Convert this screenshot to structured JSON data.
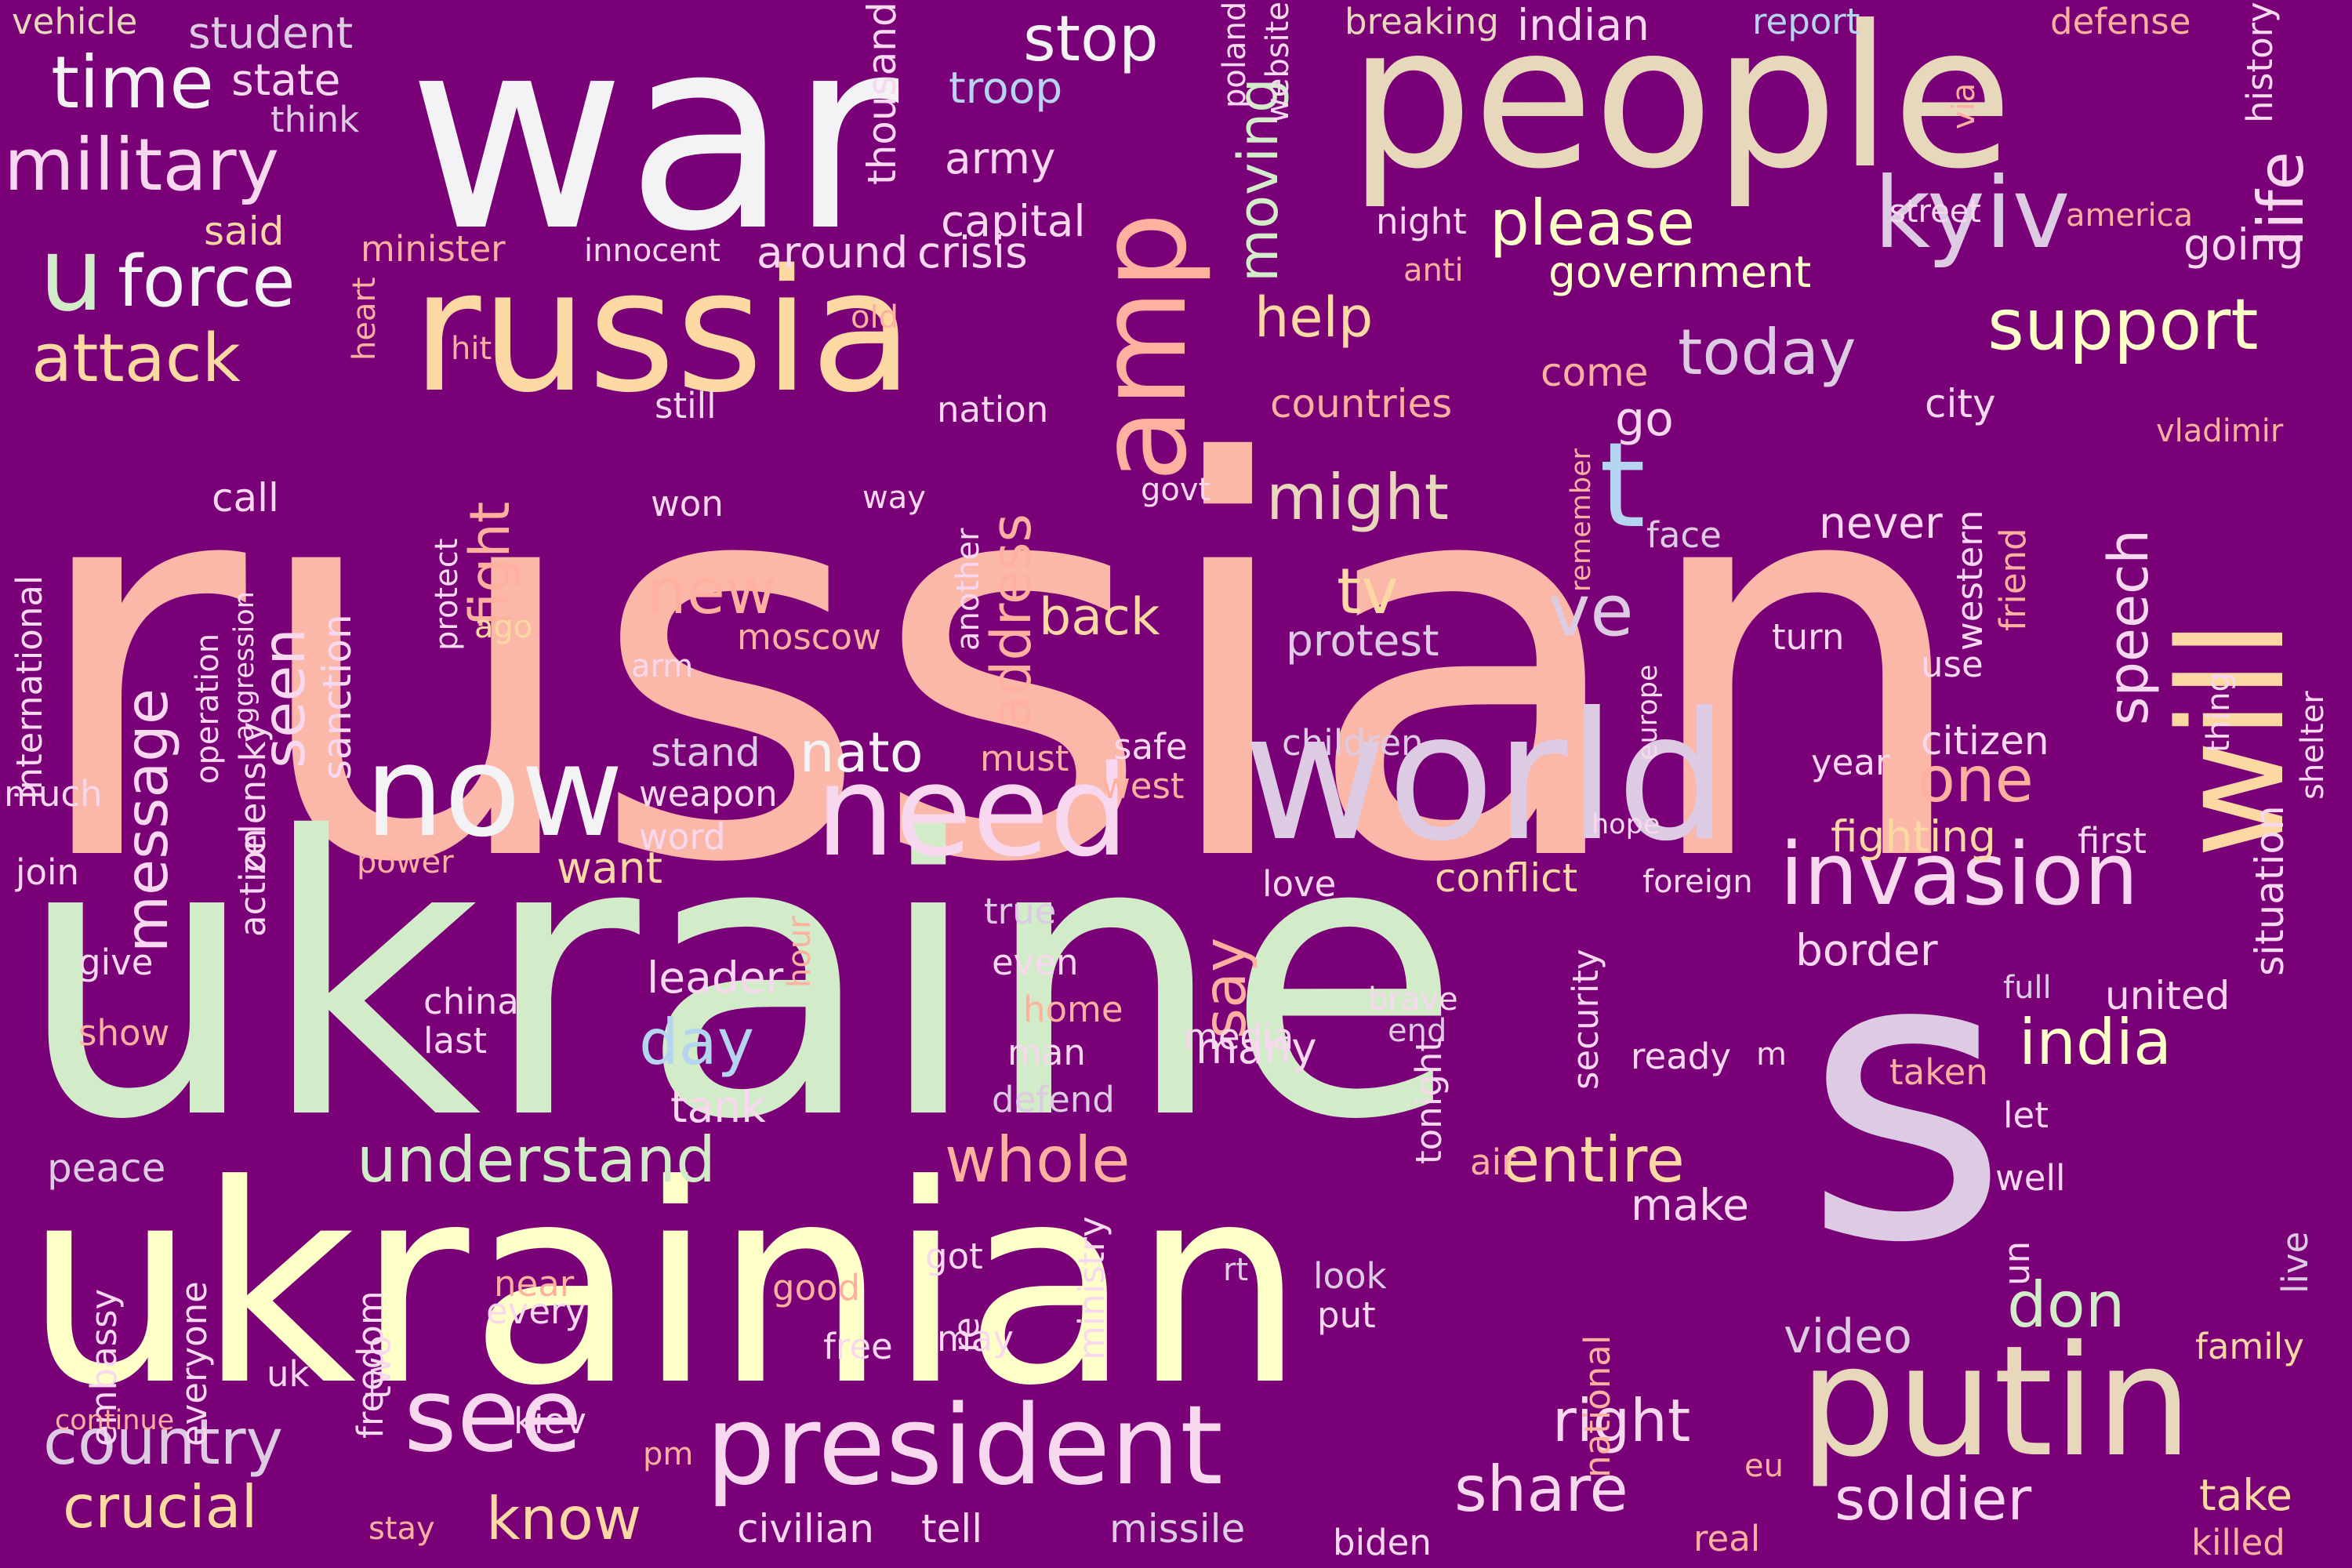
{
  "background": "#7a0077",
  "palette": {
    "pink": "#fbb8a9",
    "green": "#d2ebc8",
    "cream": "#ffffc8",
    "white": "#f3f2f5",
    "tan": "#e8d8bb",
    "lav": "#dccbe3",
    "peach": "#fcd8a3",
    "lpink": "#f8d8ef",
    "blue": "#b5d4ef",
    "salmon": "#ffb1a0"
  },
  "words": [
    {
      "text": "russian",
      "color": "pink"
    },
    {
      "text": "ukraine",
      "color": "green"
    },
    {
      "text": "ukrainian",
      "color": "cream"
    },
    {
      "text": "war",
      "color": "white"
    },
    {
      "text": "people",
      "color": "tan"
    },
    {
      "text": "russia",
      "color": "peach"
    },
    {
      "text": "s",
      "color": "lav"
    },
    {
      "text": "world",
      "color": "lav"
    },
    {
      "text": "president",
      "color": "lpink"
    },
    {
      "text": "putin",
      "color": "tan"
    },
    {
      "text": "will",
      "color": "peach"
    },
    {
      "text": "need",
      "color": "lpink"
    },
    {
      "text": "now",
      "color": "white"
    },
    {
      "text": "amp",
      "color": "salmon"
    },
    {
      "text": "kyiv",
      "color": "lav"
    },
    {
      "text": "u",
      "color": "green"
    },
    {
      "text": "t",
      "color": "blue"
    },
    {
      "text": "invasion",
      "color": "lpink"
    },
    {
      "text": "see",
      "color": "lpink"
    },
    {
      "text": "military",
      "color": "lpink"
    },
    {
      "text": "force",
      "color": "white"
    },
    {
      "text": "time",
      "color": "white"
    },
    {
      "text": "support",
      "color": "cream"
    },
    {
      "text": "attack",
      "color": "peach"
    },
    {
      "text": "understand",
      "color": "green"
    },
    {
      "text": "country",
      "color": "lav"
    },
    {
      "text": "soldier",
      "color": "lpink"
    },
    {
      "text": "share",
      "color": "lpink"
    },
    {
      "text": "entire",
      "color": "peach"
    },
    {
      "text": "whole",
      "color": "salmon"
    },
    {
      "text": "please",
      "color": "cream"
    },
    {
      "text": "today",
      "color": "lav"
    },
    {
      "text": "might",
      "color": "tan"
    },
    {
      "text": "help",
      "color": "peach"
    },
    {
      "text": "fight",
      "color": "salmon"
    },
    {
      "text": "message",
      "color": "lpink"
    },
    {
      "text": "seen",
      "color": "lpink"
    },
    {
      "text": "address",
      "color": "salmon"
    },
    {
      "text": "speech",
      "color": "lpink"
    },
    {
      "text": "life",
      "color": "lpink"
    },
    {
      "text": "stop",
      "color": "white"
    },
    {
      "text": "moving",
      "color": "green"
    },
    {
      "text": "new",
      "color": "salmon"
    },
    {
      "text": "nato",
      "color": "white"
    },
    {
      "text": "one",
      "color": "salmon"
    },
    {
      "text": "ve",
      "color": "lav"
    },
    {
      "text": "say",
      "color": "salmon"
    },
    {
      "text": "tv",
      "color": "peach"
    },
    {
      "text": "day",
      "color": "blue"
    },
    {
      "text": "india",
      "color": "cream"
    },
    {
      "text": "don",
      "color": "green"
    },
    {
      "text": "crucial",
      "color": "peach"
    },
    {
      "text": "know",
      "color": "peach"
    },
    {
      "text": "right",
      "color": "lpink"
    },
    {
      "text": "back",
      "color": "peach"
    },
    {
      "text": "government",
      "color": "cream"
    },
    {
      "text": "video",
      "color": "lav"
    },
    {
      "text": "take",
      "color": "peach"
    },
    {
      "text": "border",
      "color": "lpink"
    },
    {
      "text": "fighting",
      "color": "peach"
    },
    {
      "text": "leader",
      "color": "lpink"
    },
    {
      "text": "want",
      "color": "peach"
    },
    {
      "text": "many",
      "color": "lpink"
    },
    {
      "text": "tank",
      "color": "lpink"
    },
    {
      "text": "make",
      "color": "lpink"
    },
    {
      "text": "civilian",
      "color": "lpink"
    },
    {
      "text": "tell",
      "color": "lpink"
    },
    {
      "text": "missile",
      "color": "lav"
    },
    {
      "text": "protest",
      "color": "lav"
    },
    {
      "text": "conflict",
      "color": "peach"
    },
    {
      "text": "united",
      "color": "lpink"
    },
    {
      "text": "citizen",
      "color": "lpink"
    },
    {
      "text": "never",
      "color": "lpink"
    },
    {
      "text": "vehicle",
      "color": "tan"
    },
    {
      "text": "student",
      "color": "lav"
    },
    {
      "text": "state",
      "color": "lpink"
    },
    {
      "text": "think",
      "color": "lav"
    },
    {
      "text": "said",
      "color": "peach"
    },
    {
      "text": "minister",
      "color": "salmon"
    },
    {
      "text": "innocent",
      "color": "lpink"
    },
    {
      "text": "around",
      "color": "lpink"
    },
    {
      "text": "crisis",
      "color": "lpink"
    },
    {
      "text": "troop",
      "color": "blue"
    },
    {
      "text": "army",
      "color": "lpink"
    },
    {
      "text": "capital",
      "color": "lpink"
    },
    {
      "text": "thousand",
      "color": "lpink"
    },
    {
      "text": "website",
      "color": "lpink"
    },
    {
      "text": "poland",
      "color": "lpink"
    },
    {
      "text": "breaking",
      "color": "tan"
    },
    {
      "text": "indian",
      "color": "lpink"
    },
    {
      "text": "report",
      "color": "blue"
    },
    {
      "text": "defense",
      "color": "salmon"
    },
    {
      "text": "history",
      "color": "lpink"
    },
    {
      "text": "night",
      "color": "lpink"
    },
    {
      "text": "street",
      "color": "lpink"
    },
    {
      "text": "america",
      "color": "salmon"
    },
    {
      "text": "going",
      "color": "lpink"
    },
    {
      "text": "anti",
      "color": "salmon"
    },
    {
      "text": "old",
      "color": "salmon"
    },
    {
      "text": "hit",
      "color": "salmon"
    },
    {
      "text": "heart",
      "color": "salmon"
    },
    {
      "text": "still",
      "color": "lpink"
    },
    {
      "text": "come",
      "color": "salmon"
    },
    {
      "text": "countries",
      "color": "salmon"
    },
    {
      "text": "go",
      "color": "lpink"
    },
    {
      "text": "city",
      "color": "lpink"
    },
    {
      "text": "vladimir",
      "color": "salmon"
    },
    {
      "text": "nation",
      "color": "lpink"
    },
    {
      "text": "international",
      "color": "lpink"
    },
    {
      "text": "call",
      "color": "lpink"
    },
    {
      "text": "operation",
      "color": "lpink"
    },
    {
      "text": "aggression",
      "color": "lpink"
    },
    {
      "text": "sanction",
      "color": "lpink"
    },
    {
      "text": "protect",
      "color": "lpink"
    },
    {
      "text": "won",
      "color": "lpink"
    },
    {
      "text": "way",
      "color": "lpink"
    },
    {
      "text": "another",
      "color": "lpink"
    },
    {
      "text": "govt",
      "color": "lpink"
    },
    {
      "text": "remember",
      "color": "salmon"
    },
    {
      "text": "face",
      "color": "lav"
    },
    {
      "text": "western",
      "color": "lpink"
    },
    {
      "text": "friend",
      "color": "salmon"
    },
    {
      "text": "ago",
      "color": "peach"
    },
    {
      "text": "moscow",
      "color": "salmon"
    },
    {
      "text": "arm",
      "color": "lpink"
    },
    {
      "text": "europe",
      "color": "lpink"
    },
    {
      "text": "turn",
      "color": "lpink"
    },
    {
      "text": "use",
      "color": "lpink"
    },
    {
      "text": "thing",
      "color": "lpink"
    },
    {
      "text": "shelter",
      "color": "lpink"
    },
    {
      "text": "stand",
      "color": "lav"
    },
    {
      "text": "must",
      "color": "salmon"
    },
    {
      "text": "safe",
      "color": "lpink"
    },
    {
      "text": "children",
      "color": "lav"
    },
    {
      "text": "weapon",
      "color": "lpink"
    },
    {
      "text": "west",
      "color": "salmon"
    },
    {
      "text": "year",
      "color": "lpink"
    },
    {
      "text": "much",
      "color": "lpink"
    },
    {
      "text": "zelensky",
      "color": "lpink"
    },
    {
      "text": "word",
      "color": "lpink"
    },
    {
      "text": "hope",
      "color": "lpink"
    },
    {
      "text": "first",
      "color": "lpink"
    },
    {
      "text": "join",
      "color": "lpink"
    },
    {
      "text": "power",
      "color": "salmon"
    },
    {
      "text": "true",
      "color": "lav"
    },
    {
      "text": "love",
      "color": "lpink"
    },
    {
      "text": "foreign",
      "color": "lpink"
    },
    {
      "text": "situation",
      "color": "lpink"
    },
    {
      "text": "give",
      "color": "lpink"
    },
    {
      "text": "action",
      "color": "lpink"
    },
    {
      "text": "hour",
      "color": "salmon"
    },
    {
      "text": "even",
      "color": "lpink"
    },
    {
      "text": "security",
      "color": "lpink"
    },
    {
      "text": "show",
      "color": "salmon"
    },
    {
      "text": "china",
      "color": "lpink"
    },
    {
      "text": "last",
      "color": "lpink"
    },
    {
      "text": "home",
      "color": "salmon"
    },
    {
      "text": "man",
      "color": "lpink"
    },
    {
      "text": "media",
      "color": "lpink"
    },
    {
      "text": "brave",
      "color": "lpink"
    },
    {
      "text": "end",
      "color": "lav"
    },
    {
      "text": "full",
      "color": "lav"
    },
    {
      "text": "defend",
      "color": "lav"
    },
    {
      "text": "tonight",
      "color": "lpink"
    },
    {
      "text": "ready",
      "color": "lpink"
    },
    {
      "text": "m",
      "color": "lpink"
    },
    {
      "text": "taken",
      "color": "salmon"
    },
    {
      "text": "let",
      "color": "lpink"
    },
    {
      "text": "live",
      "color": "lav"
    },
    {
      "text": "peace",
      "color": "lav"
    },
    {
      "text": "air",
      "color": "salmon"
    },
    {
      "text": "well",
      "color": "lpink"
    },
    {
      "text": "embassy",
      "color": "lpink"
    },
    {
      "text": "everyone",
      "color": "lpink"
    },
    {
      "text": "freedom",
      "color": "lpink"
    },
    {
      "text": "two",
      "color": "lpink"
    },
    {
      "text": "near",
      "color": "salmon"
    },
    {
      "text": "every",
      "color": "lpink"
    },
    {
      "text": "good",
      "color": "salmon"
    },
    {
      "text": "got",
      "color": "lpink"
    },
    {
      "text": "free",
      "color": "lpink"
    },
    {
      "text": "may",
      "color": "lpink"
    },
    {
      "text": "re",
      "color": "lpink"
    },
    {
      "text": "ministry",
      "color": "lpink"
    },
    {
      "text": "rt",
      "color": "lav"
    },
    {
      "text": "look",
      "color": "lav"
    },
    {
      "text": "put",
      "color": "lpink"
    },
    {
      "text": "national",
      "color": "salmon"
    },
    {
      "text": "un",
      "color": "lpink"
    },
    {
      "text": "family",
      "color": "peach"
    },
    {
      "text": "uk",
      "color": "lpink"
    },
    {
      "text": "kiev",
      "color": "lpink"
    },
    {
      "text": "continue",
      "color": "salmon"
    },
    {
      "text": "pm",
      "color": "salmon"
    },
    {
      "text": "eu",
      "color": "salmon"
    },
    {
      "text": "stay",
      "color": "salmon"
    },
    {
      "text": "biden",
      "color": "lpink"
    },
    {
      "text": "real",
      "color": "salmon"
    },
    {
      "text": "killed",
      "color": "salmon"
    },
    {
      "text": "via",
      "color": "salmon"
    }
  ]
}
